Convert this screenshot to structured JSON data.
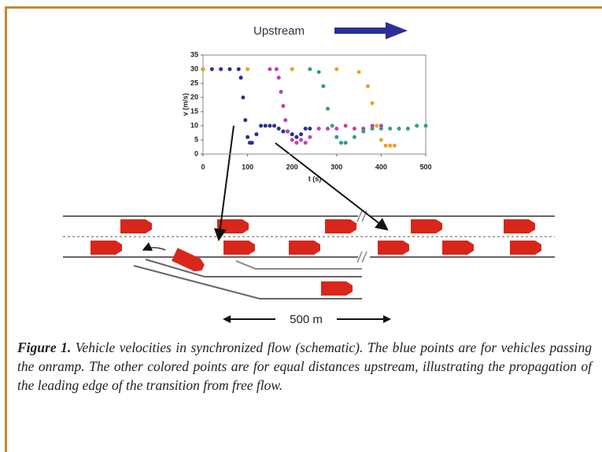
{
  "figure": {
    "upstream_label": "Upstream",
    "distance_label": "500 m",
    "caption_label": "Figure 1.",
    "caption_text": "Vehicle velocities in synchronized flow (schematic). The blue points are for vehicles passing the onramp. The other colored points are for equal distances upstream, illustrating the propagation of the leading edge of the transition from free flow."
  },
  "chart_data": {
    "type": "scatter",
    "xlabel": "t (s)",
    "ylabel": "v (m/s)",
    "xlim": [
      0,
      500
    ],
    "xticks": [
      0,
      100,
      200,
      300,
      400,
      500
    ],
    "ylim": [
      0,
      35
    ],
    "yticks": [
      0,
      5,
      10,
      15,
      20,
      25,
      30,
      35
    ],
    "series": [
      {
        "color": "#2b2f8f",
        "x": [
          0,
          20,
          40,
          60,
          80,
          85,
          90,
          95,
          100,
          105,
          110,
          120,
          130,
          140,
          150,
          160,
          170,
          180,
          190,
          200,
          210,
          220,
          230,
          240
        ],
        "values": [
          30,
          30,
          30,
          30,
          30,
          27,
          20,
          12,
          6,
          4,
          4,
          7,
          10,
          10,
          10,
          10,
          9,
          8,
          8,
          7,
          6,
          7,
          9,
          9
        ]
      },
      {
        "color": "#c040b0",
        "x": [
          150,
          165,
          170,
          175,
          180,
          185,
          190,
          200,
          210,
          220,
          230,
          240,
          260,
          280,
          300,
          320,
          340,
          360,
          380,
          400
        ],
        "values": [
          30,
          30,
          27,
          22,
          17,
          12,
          8,
          5,
          4,
          5,
          4,
          6,
          9,
          9,
          9,
          10,
          9,
          9,
          10,
          10
        ]
      },
      {
        "color": "#2ea080",
        "x": [
          200,
          240,
          260,
          270,
          280,
          290,
          300,
          310,
          320,
          340,
          360,
          380,
          400,
          420,
          440,
          460,
          480,
          500
        ],
        "values": [
          30,
          30,
          29,
          24,
          16,
          10,
          6,
          4,
          4,
          6,
          8,
          9,
          9,
          9,
          9,
          9,
          10,
          10
        ]
      },
      {
        "color": "#f0a020",
        "x": [
          0,
          100,
          200,
          300,
          350,
          370,
          380,
          390,
          400,
          410,
          420,
          430
        ],
        "values": [
          30,
          30,
          30,
          30,
          29,
          24,
          18,
          10,
          5,
          3,
          3,
          3
        ]
      }
    ]
  }
}
